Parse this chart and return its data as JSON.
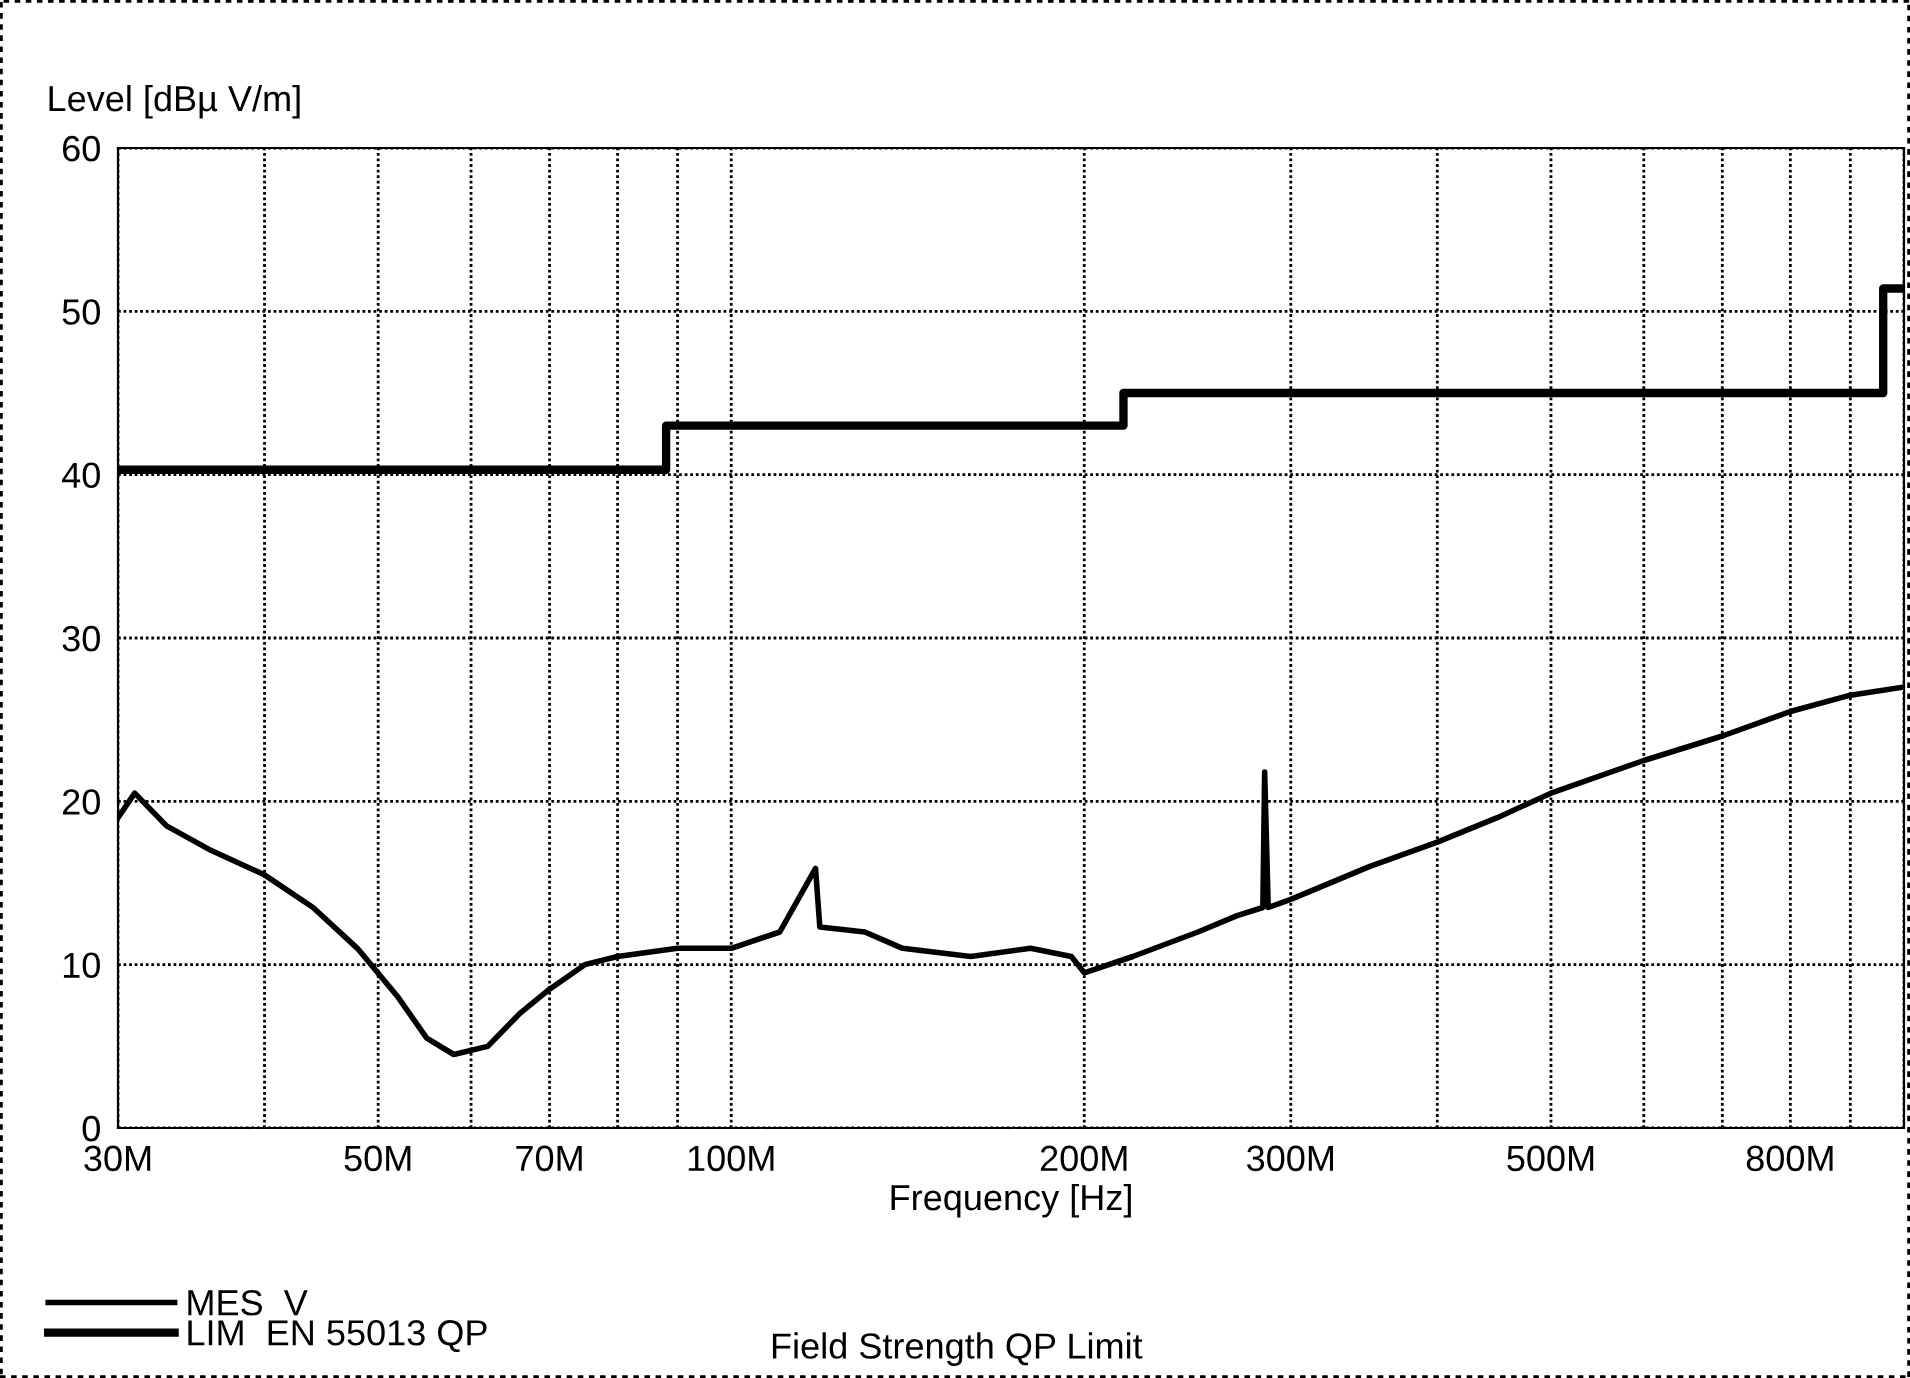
{
  "chart_data": {
    "type": "line",
    "xlabel": "Frequency [Hz]",
    "ylabel": "Level [dBµ V/m]",
    "log": "x",
    "xlim": [
      30,
      1000
    ],
    "ylim": [
      0,
      60
    ],
    "xticks": [
      {
        "value": 30,
        "label": "30M"
      },
      {
        "value": 40,
        "label": null
      },
      {
        "value": 50,
        "label": "50M"
      },
      {
        "value": 60,
        "label": null
      },
      {
        "value": 70,
        "label": "70M"
      },
      {
        "value": 80,
        "label": null
      },
      {
        "value": 90,
        "label": null
      },
      {
        "value": 100,
        "label": "100M"
      },
      {
        "value": 200,
        "label": "200M"
      },
      {
        "value": 300,
        "label": "300M"
      },
      {
        "value": 400,
        "label": null
      },
      {
        "value": 500,
        "label": "500M"
      },
      {
        "value": 600,
        "label": null
      },
      {
        "value": 700,
        "label": null
      },
      {
        "value": 800,
        "label": "800M"
      },
      {
        "value": 900,
        "label": null
      },
      {
        "value": 1000,
        "label": null
      }
    ],
    "yticks": [
      0,
      10,
      20,
      30,
      40,
      50,
      60
    ],
    "grid": true,
    "legend": "bottom left",
    "series": [
      {
        "name": "MES  V",
        "color": "#000000",
        "x": [
          30,
          31,
          33,
          36,
          40,
          44,
          48,
          52,
          55,
          58,
          62,
          66,
          70,
          75,
          80,
          90,
          100,
          110,
          118,
          119,
          130,
          140,
          160,
          180,
          195,
          200,
          220,
          250,
          270,
          284,
          285,
          287,
          300,
          350,
          400,
          450,
          500,
          600,
          700,
          800,
          900,
          1000
        ],
        "values": [
          19,
          20.5,
          18.5,
          17,
          15.5,
          13.5,
          11,
          8,
          5.5,
          4.5,
          5,
          7,
          8.5,
          10,
          10.5,
          11,
          11,
          12,
          15.9,
          12.3,
          12,
          11,
          10.5,
          11,
          10.5,
          9.5,
          10.5,
          12,
          13,
          13.5,
          21.8,
          13.5,
          14,
          16,
          17.5,
          19,
          20.5,
          22.5,
          24,
          25.5,
          26.5,
          27
        ]
      },
      {
        "name": "LIM  EN 55013 QP",
        "type": "step",
        "color": "#000000",
        "x": [
          30,
          88,
          216,
          960,
          1000
        ],
        "values": [
          40.3,
          43,
          45,
          51.4,
          51.4
        ]
      }
    ],
    "annotations": [
      "Field Strength QP Limit"
    ]
  }
}
